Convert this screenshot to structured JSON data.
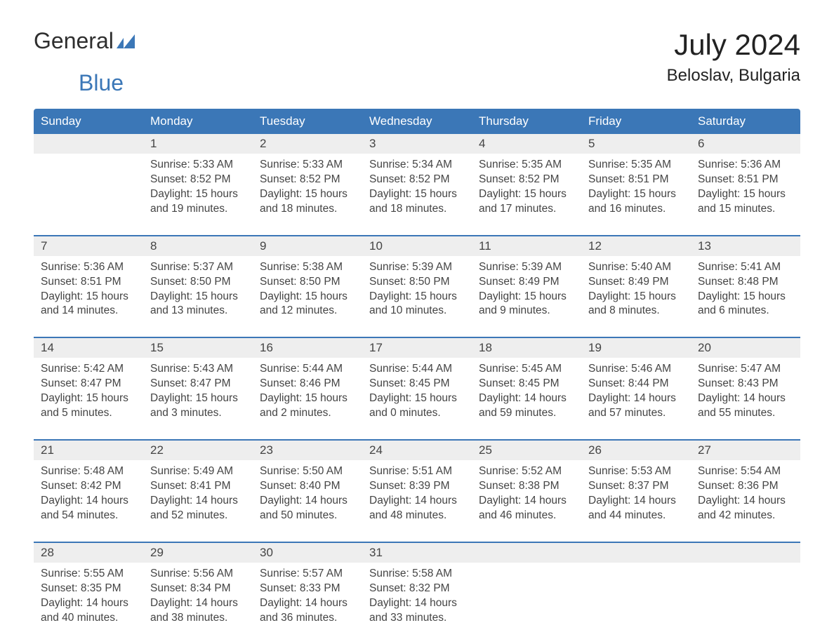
{
  "logo": {
    "word1": "General",
    "word2": "Blue"
  },
  "header": {
    "month": "July 2024",
    "location": "Beloslav, Bulgaria"
  },
  "colors": {
    "brand_blue": "#3b77b7",
    "header_bg": "#3b77b7",
    "header_text": "#ffffff",
    "daynum_bg": "#eeeeee",
    "text": "#444444",
    "page_bg": "#ffffff"
  },
  "day_labels": [
    "Sunday",
    "Monday",
    "Tuesday",
    "Wednesday",
    "Thursday",
    "Friday",
    "Saturday"
  ],
  "weeks": [
    [
      {
        "empty": true
      },
      {
        "num": "1",
        "sunrise": "Sunrise: 5:33 AM",
        "sunset": "Sunset: 8:52 PM",
        "daylight": "Daylight: 15 hours and 19 minutes."
      },
      {
        "num": "2",
        "sunrise": "Sunrise: 5:33 AM",
        "sunset": "Sunset: 8:52 PM",
        "daylight": "Daylight: 15 hours and 18 minutes."
      },
      {
        "num": "3",
        "sunrise": "Sunrise: 5:34 AM",
        "sunset": "Sunset: 8:52 PM",
        "daylight": "Daylight: 15 hours and 18 minutes."
      },
      {
        "num": "4",
        "sunrise": "Sunrise: 5:35 AM",
        "sunset": "Sunset: 8:52 PM",
        "daylight": "Daylight: 15 hours and 17 minutes."
      },
      {
        "num": "5",
        "sunrise": "Sunrise: 5:35 AM",
        "sunset": "Sunset: 8:51 PM",
        "daylight": "Daylight: 15 hours and 16 minutes."
      },
      {
        "num": "6",
        "sunrise": "Sunrise: 5:36 AM",
        "sunset": "Sunset: 8:51 PM",
        "daylight": "Daylight: 15 hours and 15 minutes."
      }
    ],
    [
      {
        "num": "7",
        "sunrise": "Sunrise: 5:36 AM",
        "sunset": "Sunset: 8:51 PM",
        "daylight": "Daylight: 15 hours and 14 minutes."
      },
      {
        "num": "8",
        "sunrise": "Sunrise: 5:37 AM",
        "sunset": "Sunset: 8:50 PM",
        "daylight": "Daylight: 15 hours and 13 minutes."
      },
      {
        "num": "9",
        "sunrise": "Sunrise: 5:38 AM",
        "sunset": "Sunset: 8:50 PM",
        "daylight": "Daylight: 15 hours and 12 minutes."
      },
      {
        "num": "10",
        "sunrise": "Sunrise: 5:39 AM",
        "sunset": "Sunset: 8:50 PM",
        "daylight": "Daylight: 15 hours and 10 minutes."
      },
      {
        "num": "11",
        "sunrise": "Sunrise: 5:39 AM",
        "sunset": "Sunset: 8:49 PM",
        "daylight": "Daylight: 15 hours and 9 minutes."
      },
      {
        "num": "12",
        "sunrise": "Sunrise: 5:40 AM",
        "sunset": "Sunset: 8:49 PM",
        "daylight": "Daylight: 15 hours and 8 minutes."
      },
      {
        "num": "13",
        "sunrise": "Sunrise: 5:41 AM",
        "sunset": "Sunset: 8:48 PM",
        "daylight": "Daylight: 15 hours and 6 minutes."
      }
    ],
    [
      {
        "num": "14",
        "sunrise": "Sunrise: 5:42 AM",
        "sunset": "Sunset: 8:47 PM",
        "daylight": "Daylight: 15 hours and 5 minutes."
      },
      {
        "num": "15",
        "sunrise": "Sunrise: 5:43 AM",
        "sunset": "Sunset: 8:47 PM",
        "daylight": "Daylight: 15 hours and 3 minutes."
      },
      {
        "num": "16",
        "sunrise": "Sunrise: 5:44 AM",
        "sunset": "Sunset: 8:46 PM",
        "daylight": "Daylight: 15 hours and 2 minutes."
      },
      {
        "num": "17",
        "sunrise": "Sunrise: 5:44 AM",
        "sunset": "Sunset: 8:45 PM",
        "daylight": "Daylight: 15 hours and 0 minutes."
      },
      {
        "num": "18",
        "sunrise": "Sunrise: 5:45 AM",
        "sunset": "Sunset: 8:45 PM",
        "daylight": "Daylight: 14 hours and 59 minutes."
      },
      {
        "num": "19",
        "sunrise": "Sunrise: 5:46 AM",
        "sunset": "Sunset: 8:44 PM",
        "daylight": "Daylight: 14 hours and 57 minutes."
      },
      {
        "num": "20",
        "sunrise": "Sunrise: 5:47 AM",
        "sunset": "Sunset: 8:43 PM",
        "daylight": "Daylight: 14 hours and 55 minutes."
      }
    ],
    [
      {
        "num": "21",
        "sunrise": "Sunrise: 5:48 AM",
        "sunset": "Sunset: 8:42 PM",
        "daylight": "Daylight: 14 hours and 54 minutes."
      },
      {
        "num": "22",
        "sunrise": "Sunrise: 5:49 AM",
        "sunset": "Sunset: 8:41 PM",
        "daylight": "Daylight: 14 hours and 52 minutes."
      },
      {
        "num": "23",
        "sunrise": "Sunrise: 5:50 AM",
        "sunset": "Sunset: 8:40 PM",
        "daylight": "Daylight: 14 hours and 50 minutes."
      },
      {
        "num": "24",
        "sunrise": "Sunrise: 5:51 AM",
        "sunset": "Sunset: 8:39 PM",
        "daylight": "Daylight: 14 hours and 48 minutes."
      },
      {
        "num": "25",
        "sunrise": "Sunrise: 5:52 AM",
        "sunset": "Sunset: 8:38 PM",
        "daylight": "Daylight: 14 hours and 46 minutes."
      },
      {
        "num": "26",
        "sunrise": "Sunrise: 5:53 AM",
        "sunset": "Sunset: 8:37 PM",
        "daylight": "Daylight: 14 hours and 44 minutes."
      },
      {
        "num": "27",
        "sunrise": "Sunrise: 5:54 AM",
        "sunset": "Sunset: 8:36 PM",
        "daylight": "Daylight: 14 hours and 42 minutes."
      }
    ],
    [
      {
        "num": "28",
        "sunrise": "Sunrise: 5:55 AM",
        "sunset": "Sunset: 8:35 PM",
        "daylight": "Daylight: 14 hours and 40 minutes."
      },
      {
        "num": "29",
        "sunrise": "Sunrise: 5:56 AM",
        "sunset": "Sunset: 8:34 PM",
        "daylight": "Daylight: 14 hours and 38 minutes."
      },
      {
        "num": "30",
        "sunrise": "Sunrise: 5:57 AM",
        "sunset": "Sunset: 8:33 PM",
        "daylight": "Daylight: 14 hours and 36 minutes."
      },
      {
        "num": "31",
        "sunrise": "Sunrise: 5:58 AM",
        "sunset": "Sunset: 8:32 PM",
        "daylight": "Daylight: 14 hours and 33 minutes."
      },
      {
        "empty": true
      },
      {
        "empty": true
      },
      {
        "empty": true
      }
    ]
  ]
}
